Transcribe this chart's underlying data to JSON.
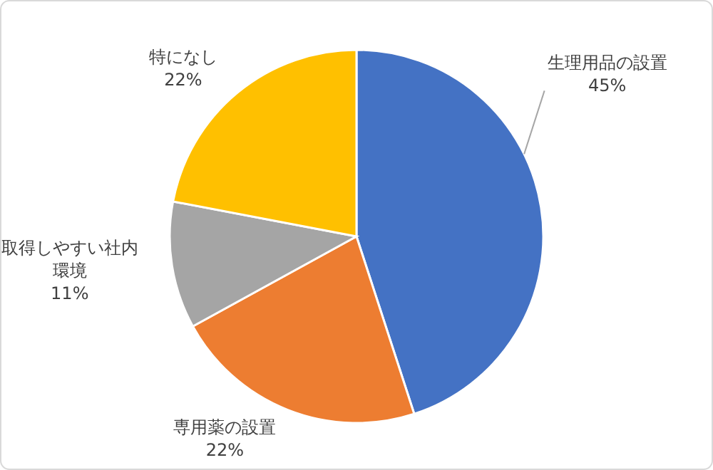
{
  "chart_data": {
    "type": "pie",
    "categories": [
      "生理用品の設置",
      "専用薬の設置",
      "取得しやすい社内環境",
      "特になし"
    ],
    "values": [
      45,
      22,
      11,
      22
    ],
    "value_labels": [
      "45%",
      "22%",
      "11%",
      "22%"
    ],
    "colors": [
      "#4472c4",
      "#ed7d31",
      "#a5a5a5",
      "#ffc000"
    ]
  }
}
